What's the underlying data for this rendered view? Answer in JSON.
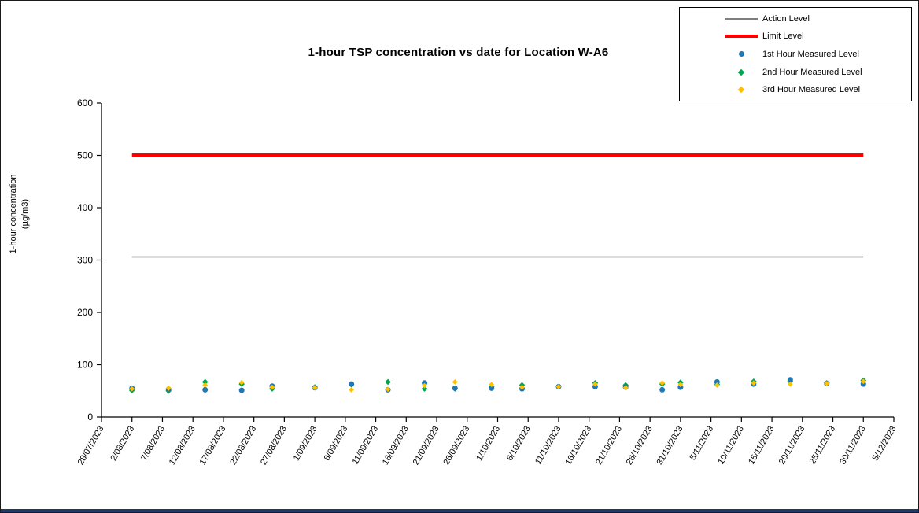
{
  "figure": {
    "border_color": "#1a1a1a",
    "bottom_bar_color": "#203864",
    "background": "#ffffff"
  },
  "chart_data": {
    "type": "scatter",
    "title": "1-hour TSP concentration vs date for Location  W-A6",
    "xlabel": "",
    "ylabel_line1": "1-hour concentration",
    "ylabel_line2": "(µg/m3)",
    "ylim": [
      0,
      600
    ],
    "y_ticks": [
      0,
      100,
      200,
      300,
      400,
      500,
      600
    ],
    "grid": false,
    "legend_position": "top-right-outside-plot",
    "x_tick_labels": [
      "28/07/2023",
      "2/08/2023",
      "7/08/2023",
      "12/08/2023",
      "17/08/2023",
      "22/08/2023",
      "27/08/2023",
      "1/09/2023",
      "6/09/2023",
      "11/09/2023",
      "16/09/2023",
      "21/09/2023",
      "26/09/2023",
      "1/10/2023",
      "6/10/2023",
      "11/10/2023",
      "16/10/2023",
      "21/10/2023",
      "26/10/2023",
      "31/10/2023",
      "5/11/2023",
      "10/11/2023",
      "15/11/2023",
      "20/11/2023",
      "25/11/2023",
      "30/11/2023",
      "5/12/2023"
    ],
    "reference_lines": [
      {
        "name": "Action Level",
        "value": 306,
        "color": "#7F7F7F",
        "width": 1.5,
        "span_dates": [
          "2/08/2023",
          "30/11/2023"
        ]
      },
      {
        "name": "Limit Level",
        "value": 500,
        "color": "#FF0000",
        "width": 5,
        "span_dates": [
          "2/08/2023",
          "30/11/2023"
        ]
      }
    ],
    "x": [
      "2/08/2023",
      "8/08/2023",
      "14/08/2023",
      "20/08/2023",
      "25/08/2023",
      "1/09/2023",
      "7/09/2023",
      "13/09/2023",
      "19/09/2023",
      "24/09/2023",
      "30/09/2023",
      "5/10/2023",
      "11/10/2023",
      "17/10/2023",
      "22/10/2023",
      "28/10/2023",
      "31/10/2023",
      "6/11/2023",
      "12/11/2023",
      "18/11/2023",
      "24/11/2023",
      "30/11/2023"
    ],
    "series": [
      {
        "name": "1st Hour Measured Level",
        "marker": "circle",
        "color": "#1F77B4",
        "values": [
          55,
          53,
          52,
          51,
          59,
          56,
          63,
          52,
          65,
          55,
          55,
          54,
          58,
          58,
          57,
          52,
          57,
          67,
          63,
          71,
          64,
          63
        ]
      },
      {
        "name": "2nd Hour Measured Level",
        "marker": "diamond",
        "color": "#00A550",
        "values": [
          51,
          50,
          67,
          63,
          54,
          57,
          62,
          67,
          54,
          54,
          58,
          61,
          58,
          65,
          61,
          63,
          66,
          62,
          68,
          68,
          65,
          70
        ]
      },
      {
        "name": "3rd Hour Measured Level",
        "marker": "diamond",
        "color": "#FFC000",
        "values": [
          54,
          55,
          61,
          66,
          57,
          56,
          52,
          53,
          60,
          67,
          62,
          57,
          58,
          63,
          56,
          65,
          62,
          61,
          65,
          63,
          64,
          68
        ]
      }
    ]
  }
}
